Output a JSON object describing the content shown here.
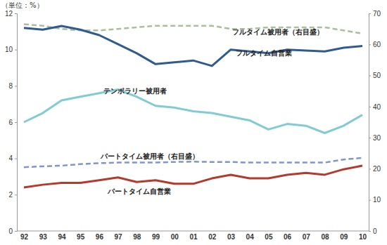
{
  "chart_data": {
    "type": "line",
    "y_label": "（単位：%）",
    "categories": [
      "92",
      "93",
      "94",
      "95",
      "96",
      "97",
      "98",
      "99",
      "00",
      "01",
      "02",
      "03",
      "04",
      "05",
      "06",
      "07",
      "08",
      "09",
      "10"
    ],
    "ylim": [
      0,
      12
    ],
    "yticks": [
      0,
      2,
      4,
      6,
      8,
      10,
      12
    ],
    "y2lim": [
      0,
      70
    ],
    "y2ticks": [
      0,
      10,
      20,
      30,
      40,
      50,
      60,
      70
    ],
    "series": [
      {
        "name": "フルタイム被用者（右目盛）",
        "axis": "y2",
        "color": "#a9bf9c",
        "line_style": "dashed",
        "values": [
          66.5,
          66,
          65,
          64.5,
          64.5,
          65,
          65.5,
          66,
          66,
          66,
          66,
          65,
          65,
          65.5,
          65.5,
          65.5,
          65.5,
          64.5,
          63.5
        ]
      },
      {
        "name": "フルタイム自営業",
        "color": "#2f5b8e",
        "line_style": "solid",
        "values": [
          11.2,
          11.1,
          11.3,
          11.1,
          10.8,
          10.3,
          9.8,
          9.2,
          9.3,
          9.4,
          9.1,
          10.0,
          9.9,
          9.8,
          10.0,
          9.95,
          9.9,
          10.1,
          10.2
        ]
      },
      {
        "name": "テンポラリー被用者",
        "color": "#82cbd3",
        "line_style": "solid",
        "values": [
          6.0,
          6.5,
          7.2,
          7.4,
          7.6,
          7.8,
          7.4,
          6.9,
          6.8,
          6.6,
          6.5,
          6.3,
          6.1,
          5.6,
          5.9,
          5.8,
          5.4,
          5.8,
          6.4
        ]
      },
      {
        "name": "パートタイム被用者（右目盛）",
        "axis": "y2",
        "color": "#7f96cb",
        "line_style": "dashed",
        "values": [
          20.5,
          20.8,
          21.0,
          21.5,
          21.8,
          22.0,
          22.0,
          22.0,
          22.2,
          22.3,
          22.2,
          22.2,
          22.0,
          22.0,
          22.0,
          22.0,
          22.0,
          23.0,
          23.5
        ]
      },
      {
        "name": "パートタイム自営業",
        "color": "#b23a2f",
        "line_style": "solid",
        "values": [
          2.4,
          2.55,
          2.65,
          2.65,
          2.8,
          2.95,
          2.7,
          2.8,
          2.6,
          2.6,
          2.9,
          3.1,
          2.9,
          2.9,
          3.1,
          3.2,
          3.1,
          3.4,
          3.6
        ]
      }
    ]
  }
}
